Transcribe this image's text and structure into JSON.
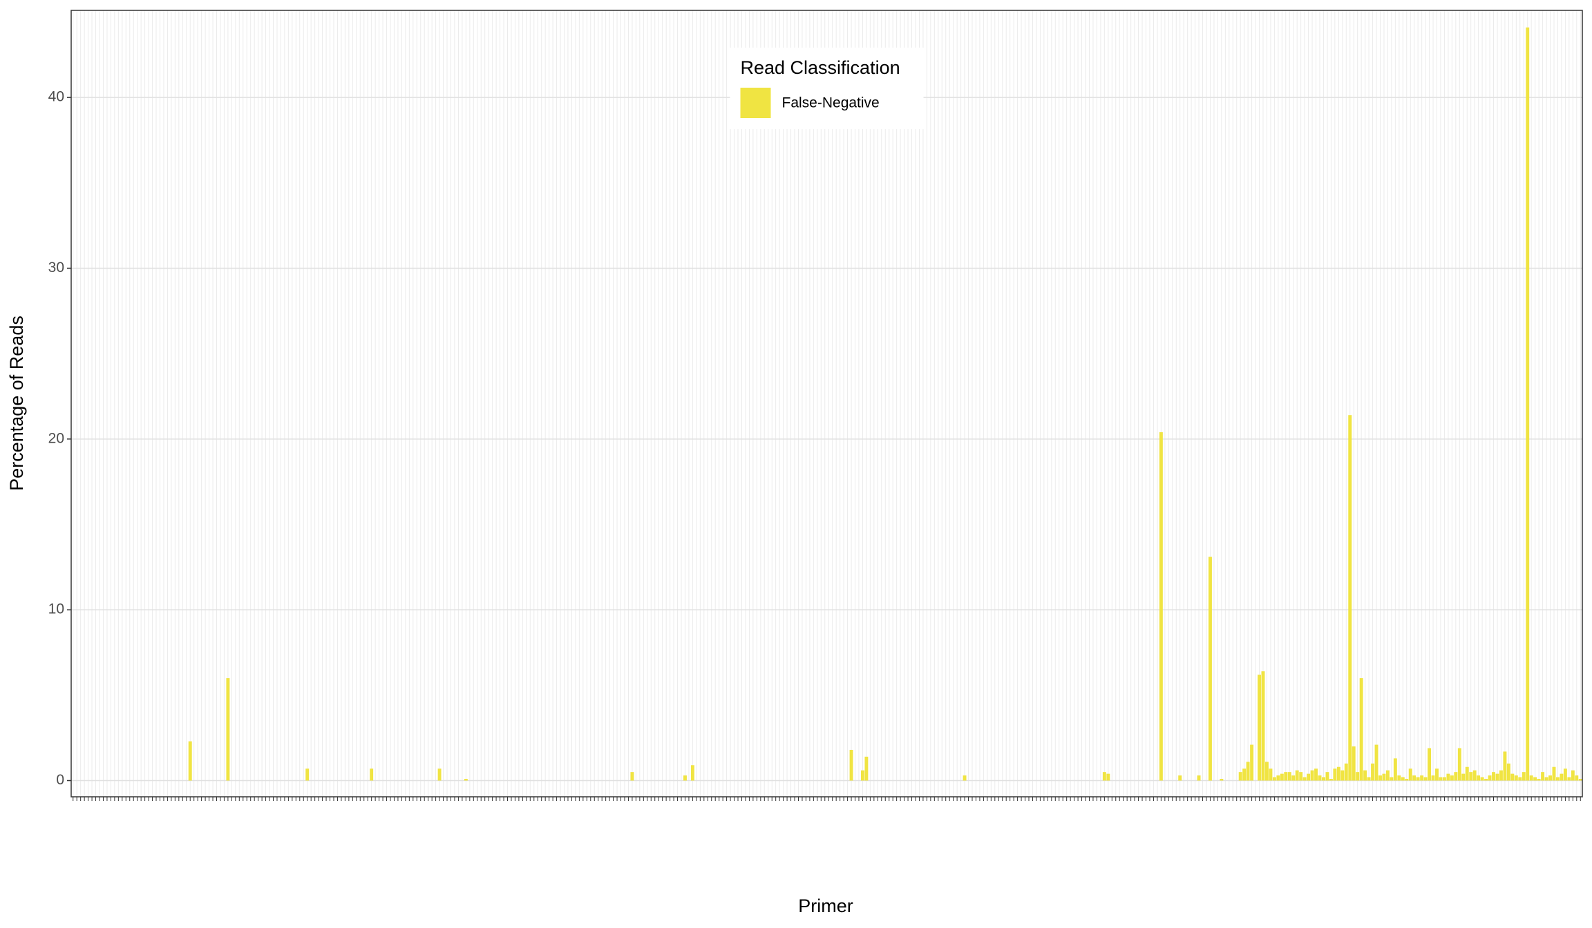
{
  "chart_data": {
    "type": "bar",
    "x_label": "Primer",
    "y_label": "Percentage of Reads",
    "legend_title": "Read Classification",
    "legend_position": "top",
    "grid": true,
    "ylim": [
      -0.95,
      45.1
    ],
    "yticks": [
      0,
      10,
      20,
      30,
      40
    ],
    "categories": [
      null,
      null,
      null,
      null,
      null,
      null,
      null,
      null,
      null,
      null,
      null,
      null,
      null,
      null,
      null,
      null,
      null,
      null,
      null,
      null,
      null,
      null,
      null,
      null,
      null,
      null,
      null,
      null,
      null,
      null,
      null,
      null,
      null,
      null,
      null,
      null,
      null,
      null,
      null,
      null,
      null,
      null,
      null,
      null,
      null,
      null,
      null,
      null,
      null,
      null,
      null,
      null,
      null,
      null,
      null,
      null,
      null,
      null,
      null,
      null,
      null,
      null,
      null,
      null,
      null,
      null,
      null,
      null,
      null,
      null,
      null,
      null,
      null,
      null,
      null,
      null,
      null,
      null,
      null,
      null,
      null,
      null,
      null,
      null,
      null,
      null,
      null,
      null,
      null,
      null,
      null,
      null,
      null,
      null,
      null,
      null,
      null,
      null,
      null,
      null,
      null,
      null,
      null,
      null,
      null,
      null,
      null,
      null,
      null,
      null,
      null,
      null,
      null,
      null,
      null,
      null,
      null,
      null,
      null,
      null,
      null,
      null,
      null,
      null,
      null,
      null,
      null,
      null,
      null,
      null,
      null,
      null,
      null,
      null,
      null,
      null,
      null,
      null,
      null,
      null,
      null,
      null,
      null,
      null,
      null,
      null,
      null,
      null,
      null,
      null,
      null,
      null,
      null,
      null,
      null,
      null,
      null,
      null,
      null,
      null,
      null,
      null,
      null,
      null,
      null,
      null,
      null,
      null,
      null,
      null,
      null,
      null,
      null,
      null,
      null,
      null,
      null,
      null,
      null,
      null,
      null,
      null,
      null,
      null,
      null,
      null,
      null,
      null,
      null,
      null,
      null,
      null,
      null,
      null,
      null,
      null,
      null,
      null,
      null,
      null,
      null,
      null,
      null,
      null,
      null,
      null,
      null,
      null,
      null,
      null,
      null,
      null,
      null,
      null,
      null,
      null,
      null,
      null,
      null,
      null,
      null,
      null,
      null,
      null,
      null,
      null,
      null,
      null,
      null,
      null,
      null,
      null,
      null,
      null,
      null,
      null,
      null,
      null,
      null,
      null,
      null,
      null,
      null,
      null,
      null,
      null,
      null,
      null,
      null,
      null,
      null,
      null,
      null,
      null,
      null,
      null,
      null,
      null,
      null,
      null,
      null,
      null,
      null,
      null,
      null,
      null,
      null,
      null,
      null,
      null,
      null,
      null,
      null,
      null,
      null,
      null,
      null,
      null,
      null,
      null,
      null,
      null,
      null,
      null,
      null,
      null,
      null,
      null,
      null,
      null,
      null,
      null,
      null,
      null,
      null,
      null,
      null,
      null,
      null,
      null,
      null,
      null,
      null,
      null,
      null,
      null,
      null,
      null,
      null,
      null,
      null,
      null,
      null,
      null,
      null,
      null,
      null,
      null,
      null,
      null,
      null,
      null,
      null,
      null,
      null,
      null,
      null,
      null,
      null,
      null,
      null,
      null,
      null,
      null,
      null,
      null,
      null,
      null,
      null,
      null,
      null,
      null,
      null,
      null,
      null,
      null,
      null,
      null,
      null,
      null,
      null,
      null,
      null,
      null,
      null,
      null,
      null,
      null,
      null,
      null,
      null,
      null,
      null,
      null,
      null,
      null,
      null,
      null,
      null,
      null,
      null,
      null,
      null,
      null,
      null,
      null,
      null,
      null,
      null,
      null,
      null,
      null,
      null,
      null,
      null,
      null,
      null,
      null,
      null,
      null,
      null,
      null,
      null,
      null,
      null,
      null,
      null,
      null,
      null,
      null
    ],
    "series": [
      {
        "name": "False-Negative",
        "color": "#f0e442",
        "values": [
          0,
          0,
          0,
          0,
          0,
          0,
          0,
          0,
          0,
          0,
          0,
          0,
          0,
          0,
          0,
          0,
          0,
          0,
          0,
          0,
          0,
          0,
          0,
          0,
          0,
          0,
          0,
          0,
          0,
          0,
          0,
          2.3,
          0,
          0,
          0,
          0,
          0,
          0,
          0,
          0,
          0,
          6.0,
          0,
          0,
          0,
          0,
          0,
          0,
          0,
          0,
          0,
          0,
          0,
          0,
          0,
          0,
          0,
          0,
          0,
          0,
          0,
          0,
          0.7,
          0,
          0,
          0,
          0,
          0,
          0,
          0,
          0,
          0,
          0,
          0,
          0,
          0,
          0,
          0,
          0,
          0.7,
          0,
          0,
          0,
          0,
          0,
          0,
          0,
          0,
          0,
          0,
          0,
          0,
          0,
          0,
          0,
          0,
          0,
          0.7,
          0,
          0,
          0,
          0,
          0,
          0,
          0.1,
          0,
          0,
          0,
          0,
          0,
          0,
          0,
          0,
          0,
          0,
          0,
          0,
          0,
          0,
          0,
          0,
          0,
          0,
          0,
          0,
          0,
          0,
          0,
          0,
          0,
          0,
          0,
          0,
          0,
          0,
          0,
          0,
          0,
          0,
          0,
          0,
          0,
          0,
          0,
          0,
          0,
          0,
          0,
          0.5,
          0,
          0,
          0,
          0,
          0,
          0,
          0,
          0,
          0,
          0,
          0,
          0,
          0,
          0.3,
          0,
          0.9,
          0,
          0,
          0,
          0,
          0,
          0,
          0,
          0,
          0,
          0,
          0,
          0,
          0,
          0,
          0,
          0,
          0,
          0,
          0,
          0,
          0,
          0,
          0,
          0,
          0,
          0,
          0,
          0,
          0,
          0,
          0,
          0,
          0,
          0,
          0,
          0,
          0,
          0,
          0,
          0,
          0,
          1.8,
          0,
          0,
          0.6,
          1.4,
          0,
          0,
          0,
          0,
          0,
          0,
          0,
          0,
          0,
          0,
          0,
          0,
          0,
          0,
          0,
          0,
          0,
          0,
          0,
          0,
          0,
          0,
          0,
          0,
          0,
          0.3,
          0,
          0,
          0,
          0,
          0,
          0,
          0,
          0,
          0,
          0,
          0,
          0,
          0,
          0,
          0,
          0,
          0,
          0,
          0,
          0,
          0,
          0,
          0,
          0,
          0,
          0,
          0,
          0,
          0,
          0,
          0,
          0,
          0,
          0,
          0,
          0,
          0.5,
          0.4,
          0,
          0,
          0,
          0,
          0,
          0,
          0,
          0,
          0,
          0,
          0,
          0,
          0,
          20.4,
          0,
          0,
          0,
          0,
          0.3,
          0,
          0,
          0,
          0,
          0.3,
          0,
          0,
          13.1,
          0,
          0,
          0.1,
          0,
          0,
          0,
          0,
          0.5,
          0.7,
          1.1,
          2.1,
          0,
          6.2,
          6.4,
          1.1,
          0.7,
          0.2,
          0.3,
          0.4,
          0.5,
          0.5,
          0.3,
          0.6,
          0.5,
          0.2,
          0.4,
          0.6,
          0.7,
          0.3,
          0.2,
          0.5,
          0.1,
          0.7,
          0.8,
          0.6,
          1.0,
          21.4,
          2.0,
          0.5,
          6.0,
          0.6,
          0.2,
          1.0,
          2.1,
          0.3,
          0.4,
          0.6,
          0.2,
          1.3,
          0.3,
          0.2,
          0.1,
          0.7,
          0.3,
          0.2,
          0.3,
          0.2,
          1.9,
          0.3,
          0.7,
          0.2,
          0.2,
          0.4,
          0.3,
          0.5,
          1.9,
          0.4,
          0.8,
          0.5,
          0.6,
          0.3,
          0.2,
          0.1,
          0.3,
          0.5,
          0.4,
          0.6,
          1.7,
          1.0,
          0.4,
          0.3,
          0.2,
          0.5,
          44.1,
          0.3,
          0.2,
          0.1,
          0.5,
          0.2,
          0.3,
          0.8,
          0.2,
          0.4,
          0.7,
          0.2,
          0.6,
          0.3,
          0.1
        ]
      }
    ]
  }
}
